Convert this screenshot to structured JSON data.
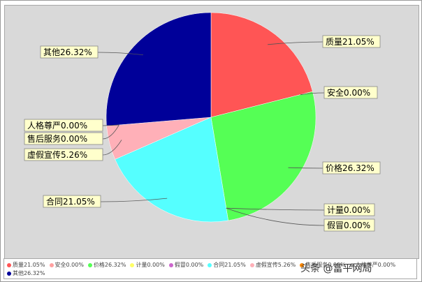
{
  "chart_data": {
    "type": "pie",
    "title": "",
    "slices": [
      {
        "label": "质量21.05%",
        "value": 21.05,
        "color": "#ff5555"
      },
      {
        "label": "安全0.00%",
        "value": 0.0,
        "color": "#ffa0a0"
      },
      {
        "label": "价格26.32%",
        "value": 26.32,
        "color": "#55ff55"
      },
      {
        "label": "计量0.00%",
        "value": 0.0,
        "color": "#ffff66"
      },
      {
        "label": "假冒0.00%",
        "value": 0.0,
        "color": "#cc66cc"
      },
      {
        "label": "合同21.05%",
        "value": 21.05,
        "color": "#55ffff"
      },
      {
        "label": "虚假宣传5.26%",
        "value": 5.26,
        "color": "#ffb0b8"
      },
      {
        "label": "售后服务0.00%",
        "value": 0.0,
        "color": "#ff8800"
      },
      {
        "label": "人格尊严0.00%",
        "value": 0.0,
        "color": "#999999"
      },
      {
        "label": "其他26.32%",
        "value": 26.32,
        "color": "#000099"
      }
    ],
    "legend_placement": "bottom"
  },
  "legend": {
    "items": [
      {
        "label": "质量21.05%",
        "color": "#ff5555"
      },
      {
        "label": "安全0.00%",
        "color": "#ffa0a0"
      },
      {
        "label": "价格26.32%",
        "color": "#55ff55"
      },
      {
        "label": "计量0.00%",
        "color": "#ffff66"
      },
      {
        "label": "假冒0.00%",
        "color": "#cc66cc"
      },
      {
        "label": "合同21.05%",
        "color": "#55ffff"
      },
      {
        "label": "虚假宣传5.26%",
        "color": "#ffb0b8"
      },
      {
        "label": "售后服务0.00%",
        "color": "#ff8800"
      },
      {
        "label": "人格尊严0.00%",
        "color": "#999999"
      },
      {
        "label": "其他26.32%",
        "color": "#000099"
      }
    ]
  },
  "watermark": {
    "text": "头条 @富平网局"
  }
}
